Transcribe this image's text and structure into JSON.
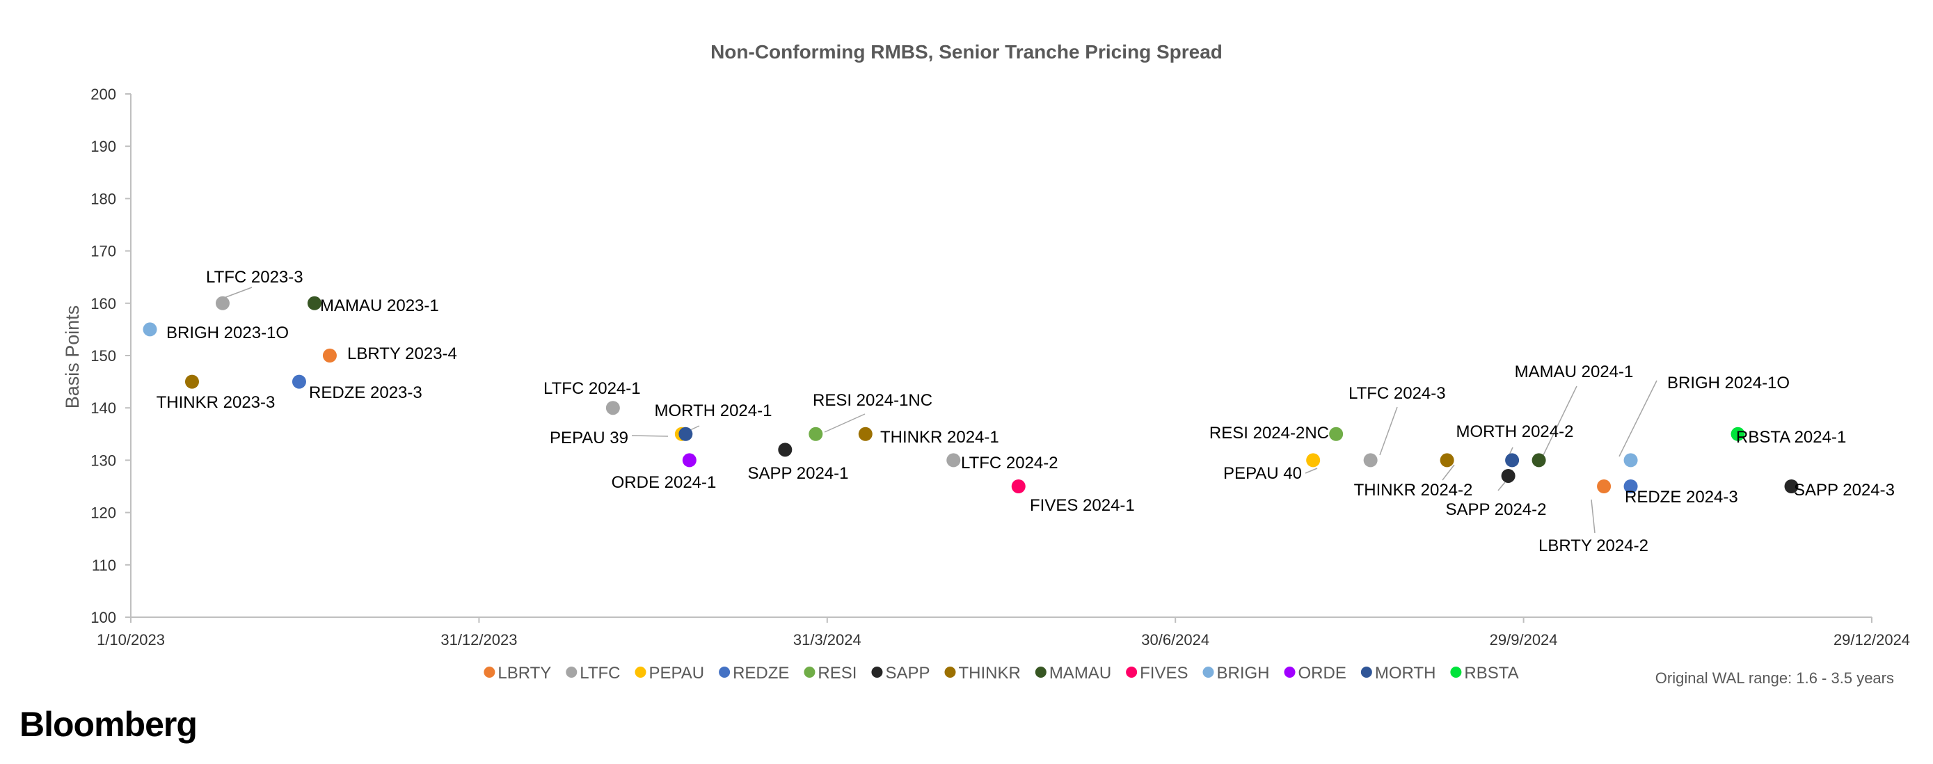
{
  "chart_data": {
    "type": "scatter",
    "title": "Non-Conforming RMBS, Senior Tranche Pricing Spread",
    "ylabel": "Basis Points",
    "xlabel": "",
    "x_type": "date",
    "xlim": [
      "2023-10-01",
      "2024-12-29"
    ],
    "ylim": [
      100,
      200
    ],
    "x_tick_labels": [
      "1/10/2023",
      "31/12/2023",
      "31/3/2024",
      "30/6/2024",
      "29/9/2024",
      "29/12/2024"
    ],
    "x_ticks": [
      "2023-10-01",
      "2023-12-31",
      "2024-03-31",
      "2024-06-30",
      "2024-09-29",
      "2024-12-29"
    ],
    "y_ticks": [
      100,
      110,
      120,
      130,
      140,
      150,
      160,
      170,
      180,
      190,
      200
    ],
    "grid": false,
    "legend_position": "bottom",
    "note": "Original WAL range: 1.6 - 3.5 years",
    "series": [
      {
        "name": "LBRTY",
        "color": "#ED7D31",
        "points": [
          {
            "x": "2023-11-22",
            "y": 150,
            "label": "LBRTY 2023-4"
          },
          {
            "x": "2024-10-20",
            "y": 125,
            "label": "LBRTY 2024-2"
          }
        ]
      },
      {
        "name": "LTFC",
        "color": "#A5A5A5",
        "points": [
          {
            "x": "2023-10-25",
            "y": 160,
            "label": "LTFC 2023-3"
          },
          {
            "x": "2024-02-04",
            "y": 140,
            "label": "LTFC 2024-1"
          },
          {
            "x": "2024-05-03",
            "y": 130,
            "label": "LTFC 2024-2"
          },
          {
            "x": "2024-08-20",
            "y": 130,
            "label": "LTFC 2024-3"
          }
        ]
      },
      {
        "name": "PEPAU",
        "color": "#FFC000",
        "points": [
          {
            "x": "2024-02-22",
            "y": 135,
            "label": "PEPAU 39"
          },
          {
            "x": "2024-08-05",
            "y": 130,
            "label": "PEPAU 40"
          }
        ]
      },
      {
        "name": "REDZE",
        "color": "#4472C4",
        "points": [
          {
            "x": "2023-11-14",
            "y": 145,
            "label": "REDZE 2023-3"
          },
          {
            "x": "2024-10-27",
            "y": 125,
            "label": "REDZE 2024-3"
          }
        ]
      },
      {
        "name": "RESI",
        "color": "#70AD47",
        "points": [
          {
            "x": "2024-03-28",
            "y": 135,
            "label": "RESI 2024-1NC"
          },
          {
            "x": "2024-08-11",
            "y": 135,
            "label": "RESI 2024-2NC"
          }
        ]
      },
      {
        "name": "SAPP",
        "color": "#262626",
        "points": [
          {
            "x": "2024-03-20",
            "y": 132,
            "label": "SAPP 2024-1"
          },
          {
            "x": "2024-09-25",
            "y": 127,
            "label": "SAPP 2024-2"
          },
          {
            "x": "2024-12-08",
            "y": 125,
            "label": "SAPP 2024-3"
          }
        ]
      },
      {
        "name": "THINKR",
        "color": "#9C7000",
        "points": [
          {
            "x": "2023-10-17",
            "y": 145,
            "label": "THINKR 2023-3"
          },
          {
            "x": "2024-04-10",
            "y": 135,
            "label": "THINKR 2024-1"
          },
          {
            "x": "2024-09-09",
            "y": 130,
            "label": "THINKR 2024-2"
          }
        ]
      },
      {
        "name": "MAMAU",
        "color": "#375623",
        "points": [
          {
            "x": "2023-11-18",
            "y": 160,
            "label": "MAMAU 2023-1"
          },
          {
            "x": "2024-10-03",
            "y": 130,
            "label": "MAMAU 2024-1"
          }
        ]
      },
      {
        "name": "FIVES",
        "color": "#FF0066",
        "points": [
          {
            "x": "2024-05-20",
            "y": 125,
            "label": "FIVES 2024-1"
          }
        ]
      },
      {
        "name": "BRIGH",
        "color": "#7CAFDD",
        "points": [
          {
            "x": "2023-10-06",
            "y": 155,
            "label": "BRIGH 2023-1O"
          },
          {
            "x": "2024-10-27",
            "y": 130,
            "label": "BRIGH 2024-1O"
          }
        ]
      },
      {
        "name": "ORDE",
        "color": "#A100FF",
        "points": [
          {
            "x": "2024-02-24",
            "y": 130,
            "label": "ORDE 2024-1"
          }
        ]
      },
      {
        "name": "MORTH",
        "color": "#2F5597",
        "points": [
          {
            "x": "2024-02-23",
            "y": 135,
            "label": "MORTH 2024-1"
          },
          {
            "x": "2024-09-26",
            "y": 130,
            "label": "MORTH 2024-2"
          }
        ]
      },
      {
        "name": "RBSTA",
        "color": "#00E33B",
        "points": [
          {
            "x": "2024-11-24",
            "y": 135,
            "label": "RBSTA 2024-1"
          }
        ]
      }
    ]
  },
  "branding": {
    "logo": "Bloomberg"
  }
}
